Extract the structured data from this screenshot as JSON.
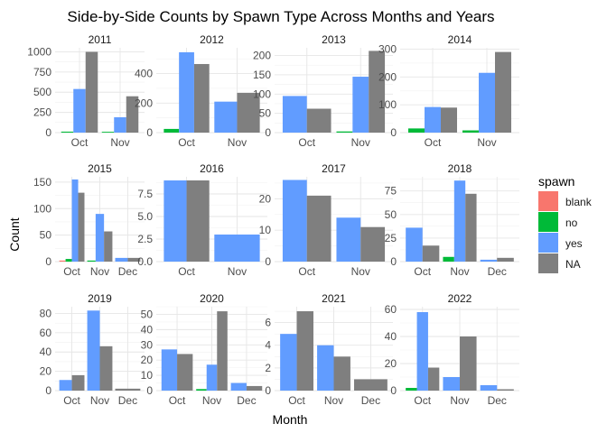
{
  "chart_data": {
    "type": "bar",
    "title": "Side-by-Side Counts by Spawn Type Across Months and Years",
    "xlabel": "Month",
    "ylabel": "Count",
    "grid": true,
    "legend": {
      "title": "spawn",
      "placement": "right",
      "entries": [
        {
          "key": "blank",
          "label": "blank",
          "color": "#F8766D"
        },
        {
          "key": "no",
          "label": "no",
          "color": "#00BA38"
        },
        {
          "key": "yes",
          "label": "yes",
          "color": "#619CFF"
        },
        {
          "key": "NA",
          "label": "NA",
          "color": "#7F7F7F"
        }
      ]
    },
    "panels": [
      {
        "year": "2011",
        "months": [
          "Oct",
          "Nov"
        ],
        "ylim": [
          0,
          1050
        ],
        "yticks": [
          0,
          250,
          500,
          750,
          1000
        ],
        "groups": [
          {
            "month": "Oct",
            "bars": [
              {
                "spawn": "no",
                "value": 12
              },
              {
                "spawn": "yes",
                "value": 540
              },
              {
                "spawn": "NA",
                "value": 1000
              }
            ]
          },
          {
            "month": "Nov",
            "bars": [
              {
                "spawn": "no",
                "value": 10
              },
              {
                "spawn": "yes",
                "value": 190
              },
              {
                "spawn": "NA",
                "value": 450
              }
            ]
          }
        ]
      },
      {
        "year": "2012",
        "months": [
          "Oct",
          "Nov"
        ],
        "ylim": [
          0,
          575
        ],
        "yticks": [
          0,
          200,
          400
        ],
        "groups": [
          {
            "month": "Oct",
            "bars": [
              {
                "spawn": "no",
                "value": 25
              },
              {
                "spawn": "yes",
                "value": 545
              },
              {
                "spawn": "NA",
                "value": 465
              }
            ]
          },
          {
            "month": "Nov",
            "bars": [
              {
                "spawn": "yes",
                "value": 210
              },
              {
                "spawn": "NA",
                "value": 270
              }
            ]
          }
        ]
      },
      {
        "year": "2013",
        "months": [
          "Oct",
          "Nov"
        ],
        "ylim": [
          0,
          220
        ],
        "yticks": [
          0,
          50,
          100,
          150,
          200
        ],
        "groups": [
          {
            "month": "Oct",
            "bars": [
              {
                "spawn": "yes",
                "value": 95
              },
              {
                "spawn": "NA",
                "value": 62
              }
            ]
          },
          {
            "month": "Nov",
            "bars": [
              {
                "spawn": "no",
                "value": 3
              },
              {
                "spawn": "yes",
                "value": 145
              },
              {
                "spawn": "NA",
                "value": 212
              }
            ]
          }
        ]
      },
      {
        "year": "2014",
        "months": [
          "Oct",
          "Nov"
        ],
        "ylim": [
          0,
          305
        ],
        "yticks": [
          0,
          100,
          200,
          300
        ],
        "groups": [
          {
            "month": "Oct",
            "bars": [
              {
                "spawn": "no",
                "value": 15
              },
              {
                "spawn": "yes",
                "value": 92
              },
              {
                "spawn": "NA",
                "value": 90
              }
            ]
          },
          {
            "month": "Nov",
            "bars": [
              {
                "spawn": "no",
                "value": 8
              },
              {
                "spawn": "yes",
                "value": 215
              },
              {
                "spawn": "NA",
                "value": 290
              }
            ]
          }
        ]
      },
      {
        "year": "2015",
        "months": [
          "Oct",
          "Nov",
          "Dec"
        ],
        "ylim": [
          0,
          160
        ],
        "yticks": [
          0,
          50,
          100,
          150
        ],
        "groups": [
          {
            "month": "Oct",
            "bars": [
              {
                "spawn": "blank",
                "value": 2
              },
              {
                "spawn": "no",
                "value": 5
              },
              {
                "spawn": "yes",
                "value": 155
              },
              {
                "spawn": "NA",
                "value": 130
              }
            ]
          },
          {
            "month": "Nov",
            "bars": [
              {
                "spawn": "no",
                "value": 2
              },
              {
                "spawn": "yes",
                "value": 90
              },
              {
                "spawn": "NA",
                "value": 57
              }
            ]
          },
          {
            "month": "Dec",
            "bars": [
              {
                "spawn": "yes",
                "value": 7
              },
              {
                "spawn": "NA",
                "value": 7
              }
            ]
          }
        ]
      },
      {
        "year": "2016",
        "months": [
          "Oct",
          "Nov"
        ],
        "ylim": [
          0,
          9.4
        ],
        "yticks": [
          0,
          2.5,
          5,
          7.5
        ],
        "yticklabels": [
          "0.0",
          "2.5",
          "5.0",
          "7.5"
        ],
        "groups": [
          {
            "month": "Oct",
            "bars": [
              {
                "spawn": "yes",
                "value": 9
              },
              {
                "spawn": "NA",
                "value": 9
              }
            ]
          },
          {
            "month": "Nov",
            "bars": [
              {
                "spawn": "yes",
                "value": 3
              }
            ]
          }
        ]
      },
      {
        "year": "2017",
        "months": [
          "Oct",
          "Nov"
        ],
        "ylim": [
          0,
          27
        ],
        "yticks": [
          0,
          10,
          20
        ],
        "groups": [
          {
            "month": "Oct",
            "bars": [
              {
                "spawn": "yes",
                "value": 26
              },
              {
                "spawn": "NA",
                "value": 21
              }
            ]
          },
          {
            "month": "Nov",
            "bars": [
              {
                "spawn": "yes",
                "value": 14
              },
              {
                "spawn": "NA",
                "value": 11
              }
            ]
          }
        ]
      },
      {
        "year": "2018",
        "months": [
          "Oct",
          "Nov",
          "Dec"
        ],
        "ylim": [
          0,
          90
        ],
        "yticks": [
          0,
          25,
          50,
          75
        ],
        "groups": [
          {
            "month": "Oct",
            "bars": [
              {
                "spawn": "yes",
                "value": 36
              },
              {
                "spawn": "NA",
                "value": 17
              }
            ]
          },
          {
            "month": "Nov",
            "bars": [
              {
                "spawn": "no",
                "value": 5
              },
              {
                "spawn": "yes",
                "value": 86
              },
              {
                "spawn": "NA",
                "value": 72
              }
            ]
          },
          {
            "month": "Dec",
            "bars": [
              {
                "spawn": "yes",
                "value": 2
              },
              {
                "spawn": "NA",
                "value": 4
              }
            ]
          }
        ]
      },
      {
        "year": "2019",
        "months": [
          "Oct",
          "Nov",
          "Dec"
        ],
        "ylim": [
          0,
          87
        ],
        "yticks": [
          0,
          20,
          40,
          60,
          80
        ],
        "groups": [
          {
            "month": "Oct",
            "bars": [
              {
                "spawn": "yes",
                "value": 11
              },
              {
                "spawn": "NA",
                "value": 16
              }
            ]
          },
          {
            "month": "Nov",
            "bars": [
              {
                "spawn": "yes",
                "value": 83
              },
              {
                "spawn": "NA",
                "value": 46
              }
            ]
          },
          {
            "month": "Dec",
            "bars": [
              {
                "spawn": "NA",
                "value": 2
              }
            ]
          }
        ]
      },
      {
        "year": "2020",
        "months": [
          "Oct",
          "Nov",
          "Dec"
        ],
        "ylim": [
          0,
          55
        ],
        "yticks": [
          0,
          10,
          20,
          30,
          40,
          50
        ],
        "groups": [
          {
            "month": "Oct",
            "bars": [
              {
                "spawn": "yes",
                "value": 27
              },
              {
                "spawn": "NA",
                "value": 24
              }
            ]
          },
          {
            "month": "Nov",
            "bars": [
              {
                "spawn": "no",
                "value": 1
              },
              {
                "spawn": "yes",
                "value": 17
              },
              {
                "spawn": "NA",
                "value": 52
              }
            ]
          },
          {
            "month": "Dec",
            "bars": [
              {
                "spawn": "yes",
                "value": 5
              },
              {
                "spawn": "NA",
                "value": 3
              }
            ]
          }
        ]
      },
      {
        "year": "2021",
        "months": [
          "Oct",
          "Nov",
          "Dec"
        ],
        "ylim": [
          0,
          7.4
        ],
        "yticks": [
          0,
          2,
          4,
          6
        ],
        "groups": [
          {
            "month": "Oct",
            "bars": [
              {
                "spawn": "yes",
                "value": 5
              },
              {
                "spawn": "NA",
                "value": 7
              }
            ]
          },
          {
            "month": "Nov",
            "bars": [
              {
                "spawn": "yes",
                "value": 4
              },
              {
                "spawn": "NA",
                "value": 3
              }
            ]
          },
          {
            "month": "Dec",
            "bars": [
              {
                "spawn": "NA",
                "value": 1
              }
            ]
          }
        ]
      },
      {
        "year": "2022",
        "months": [
          "Oct",
          "Nov",
          "Dec"
        ],
        "ylim": [
          0,
          62
        ],
        "yticks": [
          0,
          20,
          40,
          60
        ],
        "groups": [
          {
            "month": "Oct",
            "bars": [
              {
                "spawn": "no",
                "value": 2
              },
              {
                "spawn": "yes",
                "value": 58
              },
              {
                "spawn": "NA",
                "value": 17
              }
            ]
          },
          {
            "month": "Nov",
            "bars": [
              {
                "spawn": "yes",
                "value": 10
              },
              {
                "spawn": "NA",
                "value": 40
              }
            ]
          },
          {
            "month": "Dec",
            "bars": [
              {
                "spawn": "yes",
                "value": 4
              },
              {
                "spawn": "NA",
                "value": 1
              }
            ]
          }
        ]
      }
    ]
  }
}
